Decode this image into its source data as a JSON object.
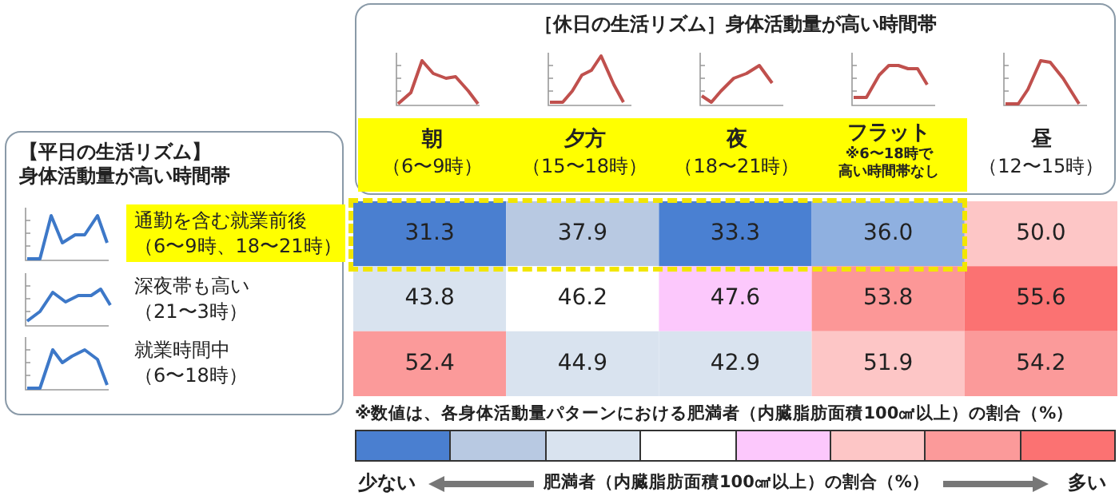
{
  "chart_data": {
    "type": "heatmap",
    "xlabel": "［休日の生活リズム］身体活動量が高い時間帯",
    "ylabel": "【平日の生活リズム】身体活動量が高い時間帯",
    "categories": [
      "朝（6〜9時）",
      "夕方（15〜18時）",
      "夜（18〜21時）",
      "フラット※6〜18時で高い時間帯なし",
      "昼（12〜15時）"
    ],
    "y_categories": [
      "通勤を含む就業前後（6〜9時、18〜21時）",
      "深夜帯も高い（21〜3時）",
      "就業時間中（6〜18時）"
    ],
    "cells": [
      [
        31.3,
        37.9,
        33.3,
        36.0,
        50.0
      ],
      [
        43.8,
        46.2,
        47.6,
        53.8,
        55.6
      ],
      [
        52.4,
        44.9,
        42.9,
        51.9,
        54.2
      ]
    ],
    "cell_labels": [
      [
        "31.3",
        "37.9",
        "33.3",
        "36.0",
        "50.0"
      ],
      [
        "43.8",
        "46.2",
        "47.6",
        "53.8",
        "55.6"
      ],
      [
        "52.4",
        "44.9",
        "42.9",
        "51.9",
        "54.2"
      ]
    ],
    "colors": [
      [
        "#4a7fd0",
        "#b8c9e2",
        "#4a80d2",
        "#8fb0e0",
        "#fdc6c6"
      ],
      [
        "#d9e3ef",
        "#ffffff",
        "#fcc8fc",
        "#fc9797",
        "#fb7272"
      ],
      [
        "#fb9a9a",
        "#d9e3ef",
        "#d9e3ef",
        "#fdc6c6",
        "#fb9a9a"
      ]
    ],
    "annotations": [
      "※数値は、各身体活動量パターンにおける肥満者（内臓脂肪面積100㎠以上）の割合（%）",
      "少ない",
      "肥満者（内臓脂肪面積100㎠以上）の割合（%）",
      "多い"
    ]
  }
}
